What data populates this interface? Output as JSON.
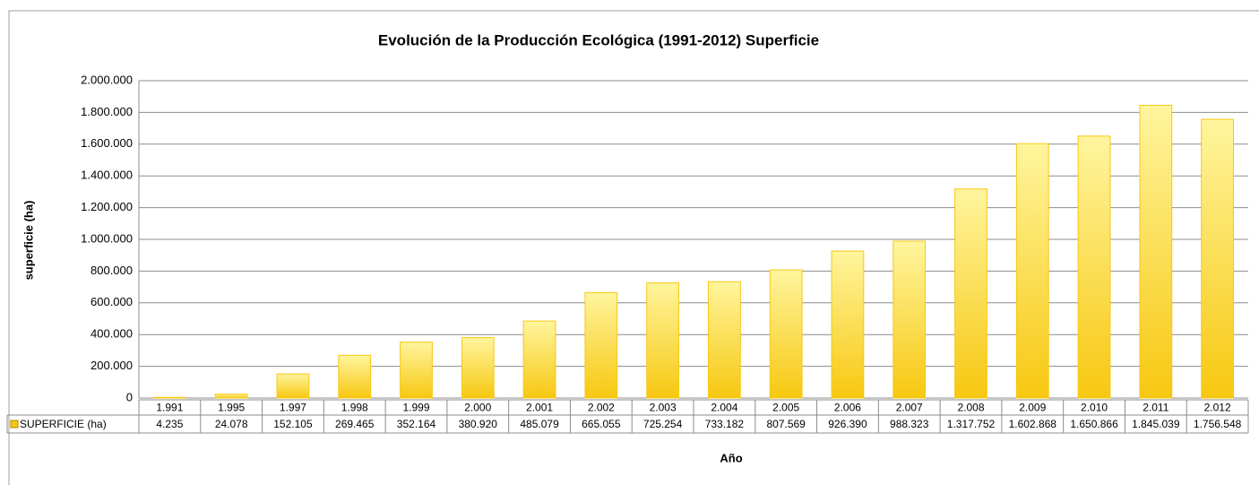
{
  "chart_data": {
    "type": "bar",
    "title": "Evolución de la Producción Ecológica (1991-2012) Superficie",
    "y_label": "superficie (ha)",
    "x_label": "Año",
    "categories": [
      "1.991",
      "1.995",
      "1.997",
      "1.998",
      "1.999",
      "2.000",
      "2.001",
      "2.002",
      "2.003",
      "2.004",
      "2.005",
      "2.006",
      "2.007",
      "2.008",
      "2.009",
      "2.010",
      "2.011",
      "2.012"
    ],
    "series": [
      {
        "name": "SUPERFICIE (ha)",
        "color": "#f7c811",
        "values": [
          4235,
          24078,
          152105,
          269465,
          352164,
          380920,
          485079,
          665055,
          725254,
          733182,
          807569,
          926390,
          988323,
          1317752,
          1602868,
          1650866,
          1845039,
          1756548
        ],
        "value_labels": [
          "4.235",
          "24.078",
          "152.105",
          "269.465",
          "352.164",
          "380.920",
          "485.079",
          "665.055",
          "725.254",
          "733.182",
          "807.569",
          "926.390",
          "988.323",
          "1.317.752",
          "1.602.868",
          "1.650.866",
          "1.845.039",
          "1.756.548"
        ]
      }
    ],
    "ylim": [
      0,
      2000000
    ],
    "yticks": [
      0,
      {
        "value": 200000,
        "label": "200.000"
      },
      {
        "value": 400000,
        "label": "400.000"
      },
      {
        "value": 600000,
        "label": "600.000"
      },
      {
        "value": 800000,
        "label": "800.000"
      },
      {
        "value": 1000000,
        "label": "1.000.000"
      },
      {
        "value": 1200000,
        "label": "1.200.000"
      },
      {
        "value": 1400000,
        "label": "1.400.000"
      },
      {
        "value": 1600000,
        "label": "1.600.000"
      },
      {
        "value": 1800000,
        "label": "1.800.000"
      },
      {
        "value": 2000000,
        "label": "2.000.000"
      }
    ],
    "grid": true
  }
}
